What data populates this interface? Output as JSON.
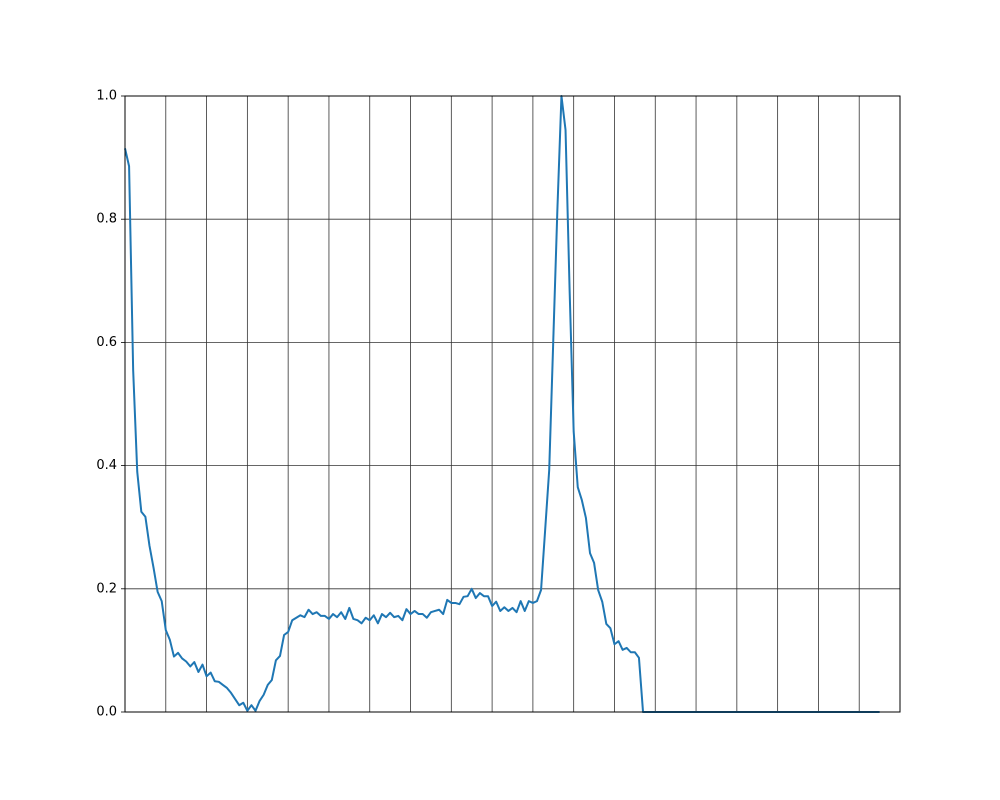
{
  "chart_data": {
    "type": "line",
    "x": [
      0,
      1,
      2,
      3,
      4,
      5,
      6,
      7,
      8,
      9,
      10,
      11,
      12,
      13,
      14,
      15,
      16,
      17,
      18,
      19,
      20,
      21,
      22,
      23,
      24,
      25,
      26,
      27,
      28,
      29,
      30,
      31,
      32,
      33,
      34,
      35,
      36,
      37,
      38,
      39,
      40,
      41,
      42,
      43,
      44,
      45,
      46,
      47,
      48,
      49,
      50,
      51,
      52,
      53,
      54,
      55,
      56,
      57,
      58,
      59,
      60,
      61,
      62,
      63,
      64,
      65,
      66,
      67,
      68,
      69,
      70,
      71,
      72,
      73,
      74,
      75,
      76,
      77,
      78,
      79,
      80,
      81,
      82,
      83,
      84,
      85,
      86,
      87,
      88,
      89,
      90,
      91,
      92,
      93,
      94,
      95,
      96,
      97,
      98,
      99,
      100,
      101,
      102,
      103,
      104,
      105,
      106,
      107,
      108,
      109,
      110,
      111,
      112,
      113,
      114,
      115,
      116,
      117,
      118,
      119,
      120,
      121,
      122,
      123,
      124,
      125,
      126,
      127,
      128,
      129,
      130,
      131,
      132,
      133,
      134,
      135,
      136,
      137,
      138,
      139,
      140,
      141,
      142,
      143,
      144,
      145,
      146,
      147,
      148,
      149,
      150,
      151,
      152,
      153,
      154,
      155,
      156,
      157,
      158,
      159,
      160,
      161,
      162,
      163,
      164,
      165,
      166,
      167,
      168,
      169,
      170,
      171,
      172,
      173,
      174,
      175,
      176,
      177,
      178,
      179,
      180,
      181,
      182,
      183,
      184,
      185
    ],
    "values": [
      0.915,
      0.886,
      0.555,
      0.39,
      0.325,
      0.317,
      0.27,
      0.234,
      0.195,
      0.18,
      0.133,
      0.117,
      0.09,
      0.096,
      0.087,
      0.082,
      0.074,
      0.081,
      0.065,
      0.077,
      0.058,
      0.064,
      0.05,
      0.049,
      0.044,
      0.039,
      0.031,
      0.021,
      0.011,
      0.015,
      0.002,
      0.011,
      0.002,
      0.018,
      0.028,
      0.044,
      0.052,
      0.084,
      0.091,
      0.125,
      0.13,
      0.149,
      0.153,
      0.157,
      0.154,
      0.166,
      0.159,
      0.162,
      0.156,
      0.156,
      0.151,
      0.159,
      0.154,
      0.162,
      0.151,
      0.169,
      0.151,
      0.149,
      0.144,
      0.153,
      0.149,
      0.157,
      0.144,
      0.159,
      0.154,
      0.161,
      0.154,
      0.156,
      0.149,
      0.167,
      0.159,
      0.164,
      0.159,
      0.159,
      0.153,
      0.162,
      0.164,
      0.166,
      0.159,
      0.182,
      0.177,
      0.177,
      0.175,
      0.187,
      0.188,
      0.2,
      0.185,
      0.193,
      0.188,
      0.188,
      0.172,
      0.179,
      0.164,
      0.17,
      0.164,
      0.169,
      0.162,
      0.18,
      0.164,
      0.18,
      0.177,
      0.18,
      0.198,
      0.295,
      0.393,
      0.604,
      0.815,
      1.0,
      0.945,
      0.685,
      0.455,
      0.365,
      0.344,
      0.315,
      0.258,
      0.242,
      0.198,
      0.179,
      0.143,
      0.136,
      0.11,
      0.115,
      0.101,
      0.104,
      0.097,
      0.097,
      0.088,
      0,
      0,
      0,
      0,
      0,
      0,
      0,
      0,
      0,
      0,
      0,
      0,
      0,
      0,
      0,
      0,
      0,
      0,
      0,
      0,
      0,
      0,
      0,
      0,
      0,
      0,
      0,
      0,
      0,
      0,
      0,
      0,
      0,
      0,
      0,
      0,
      0,
      0,
      0,
      0,
      0,
      0,
      0,
      0,
      0,
      0,
      0,
      0,
      0,
      0,
      0,
      0,
      0,
      0,
      0,
      0,
      0,
      0,
      0
    ],
    "color": "#1f77b4",
    "xlim": [
      0,
      190
    ],
    "xticks": [
      0,
      10,
      20,
      30,
      40,
      50,
      60,
      70,
      80,
      90,
      100,
      110,
      120,
      130,
      140,
      150,
      160,
      170,
      180,
      190
    ],
    "ylim": [
      0,
      1
    ],
    "yticks": [
      {
        "value": 0,
        "label": "0.0"
      },
      0.2,
      0.4,
      0.6,
      0.8,
      {
        "value": 1,
        "label": "1.0"
      }
    ],
    "grid": true
  }
}
